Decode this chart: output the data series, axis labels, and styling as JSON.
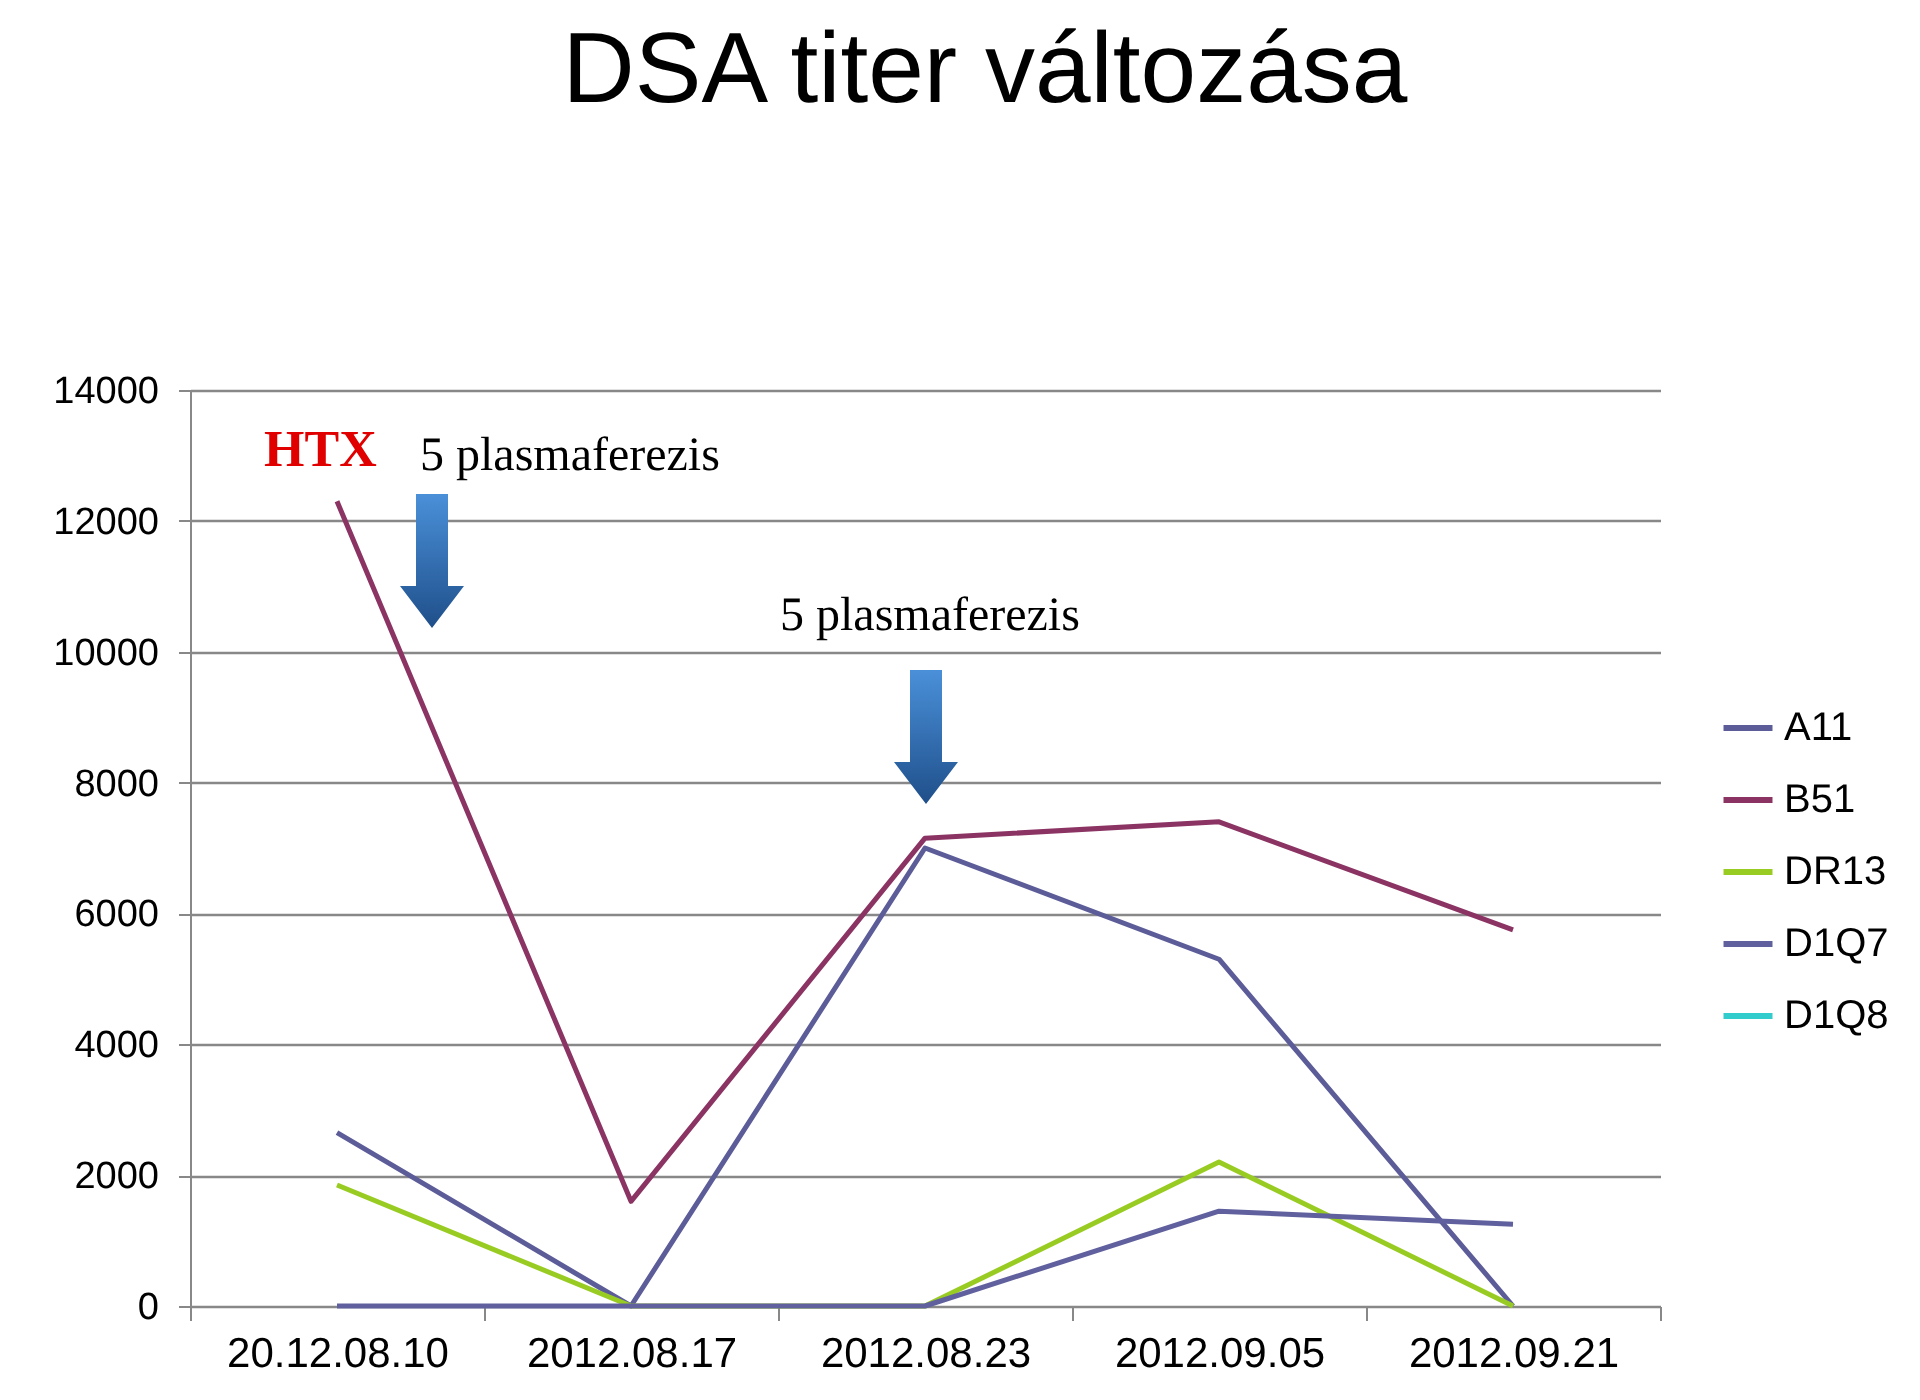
{
  "chart_data": {
    "type": "line",
    "title": "DSA titer változása",
    "categories": [
      "20.12.08.10",
      "2012.08.17",
      "2012.08.23",
      "2012.09.05",
      "2012.09.21"
    ],
    "series": [
      {
        "name": "A11",
        "color": "#5c5c99",
        "values": [
          2650,
          0,
          7000,
          5300,
          0
        ]
      },
      {
        "name": "B51",
        "color": "#8b3463",
        "values": [
          12300,
          1600,
          7150,
          7400,
          5750
        ]
      },
      {
        "name": "DR13",
        "color": "#99cc22",
        "values": [
          1850,
          0,
          0,
          2200,
          0
        ]
      },
      {
        "name": "D1Q7",
        "color": "#60609e",
        "values": [
          0,
          0,
          0,
          1450,
          1250
        ]
      },
      {
        "name": "D1Q8",
        "color": "#33cccc",
        "values": [
          null,
          null,
          null,
          null,
          null
        ]
      }
    ],
    "ylim": [
      0,
      14000
    ],
    "yticks": [
      0,
      2000,
      4000,
      6000,
      8000,
      10000,
      12000,
      14000
    ],
    "grid": "y",
    "legend": "right",
    "marker": "none",
    "line_style": "solid",
    "annotations": [
      "HTX",
      "5 plasmaferezis",
      "5 plasmaferezis"
    ]
  }
}
